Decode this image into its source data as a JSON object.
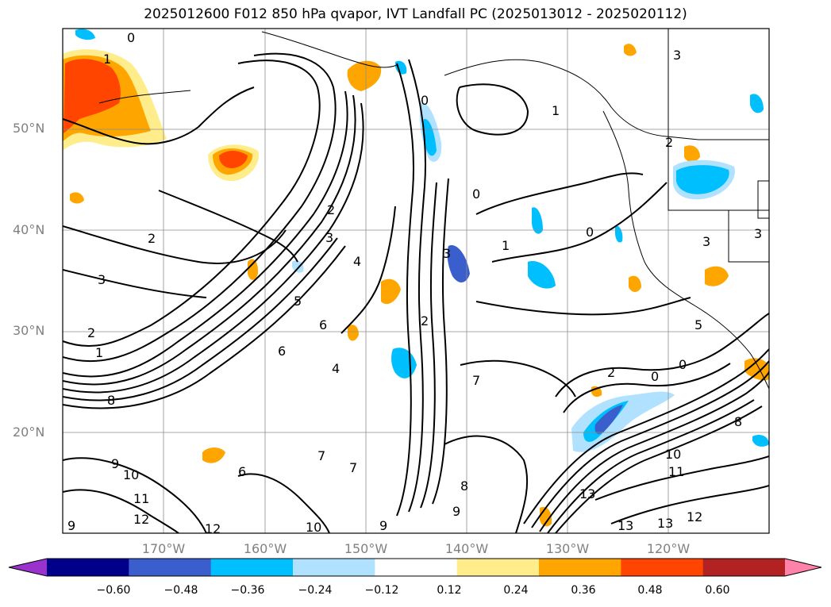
{
  "figure": {
    "title": "2025012600 F012 850 hPa qvapor, IVT Landfall PC (2025013012 - 2025020112)"
  },
  "map": {
    "lat_labels": [
      "50°N",
      "40°N",
      "30°N",
      "20°N"
    ],
    "lon_labels": [
      "170°W",
      "160°W",
      "150°W",
      "140°W",
      "130°W",
      "120°W"
    ],
    "contour_labels": [
      "0",
      "1",
      "2",
      "3",
      "4",
      "5",
      "6",
      "7",
      "8",
      "9",
      "10",
      "11",
      "12",
      "13"
    ]
  },
  "colorbar": {
    "colors": [
      "#9a32cd",
      "#00008b",
      "#3a5fcd",
      "#00bfff",
      "#b0e2ff",
      "#ffffff",
      "#ffec8b",
      "#ffa500",
      "#ff4500",
      "#b22222",
      "#ff82ab"
    ],
    "tick_labels": [
      "−0.60",
      "−0.48",
      "−0.36",
      "−0.24",
      "−0.12",
      "0.12",
      "0.24",
      "0.36",
      "0.48",
      "0.60"
    ]
  }
}
